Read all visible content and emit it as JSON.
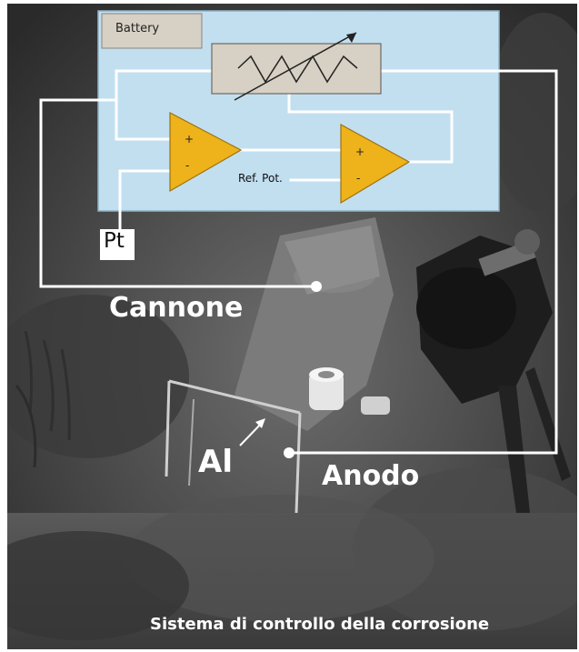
{
  "diagram": {
    "battery_label": "Battery",
    "ref_pot_label": "Ref. Pot.",
    "pt_label": "Pt",
    "cannone_label": "Cannone",
    "al_label": "Al",
    "anodo_label": "Anodo",
    "caption": "Sistema di controllo della corrosione",
    "amp1_plus": "+",
    "amp1_minus": "-",
    "amp2_plus": "+",
    "amp2_minus": "-"
  },
  "colors": {
    "panel_bg": "#c2dff0",
    "amp_fill": "#eeb21a",
    "resistor_fill": "#d7d0c4",
    "wire": "#ffffff"
  }
}
